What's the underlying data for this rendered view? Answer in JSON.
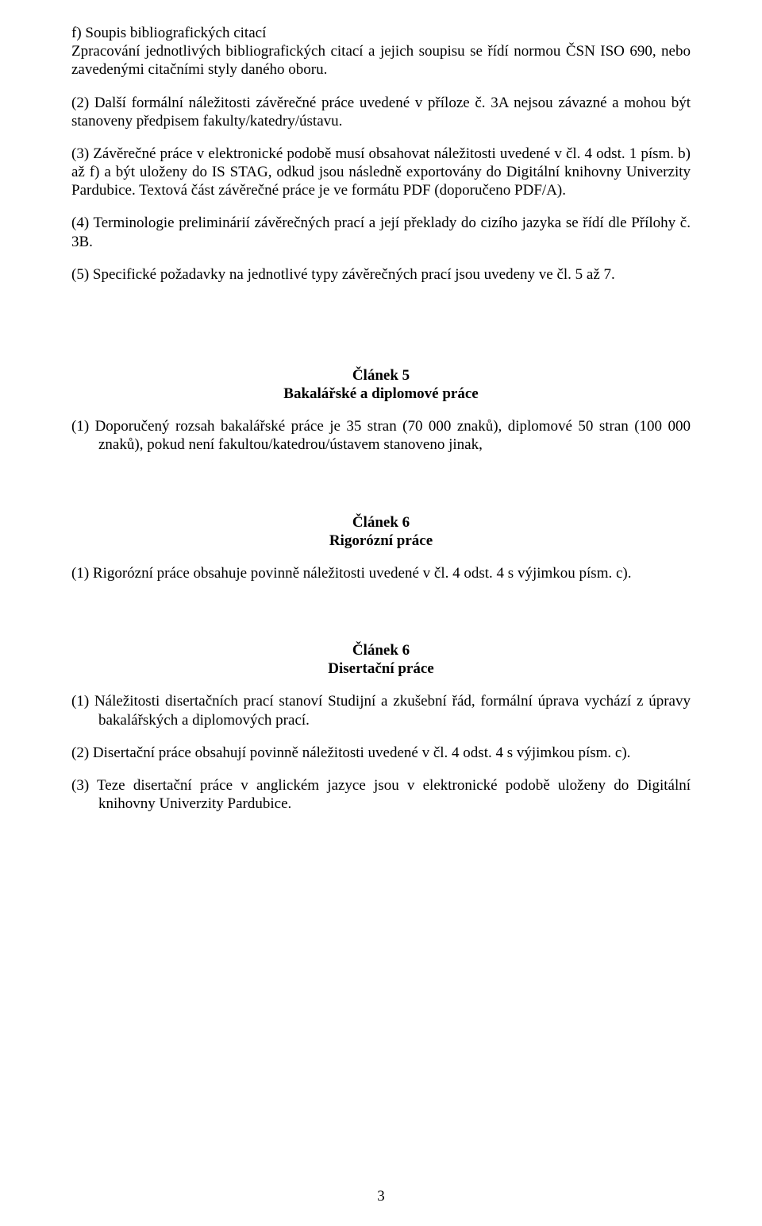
{
  "intro": {
    "f_title": "f) Soupis bibliografických citací",
    "f_text": "Zpracování jednotlivých bibliografických citací a jejich soupisu se řídí normou ČSN ISO 690, nebo zavedenými citačními styly daného oboru.",
    "p2": "(2) Další formální náležitosti závěrečné práce uvedené v příloze č. 3A nejsou závazné a mohou být stanoveny předpisem fakulty/katedry/ústavu.",
    "p3": "(3) Závěrečné práce v elektronické podobě musí obsahovat náležitosti uvedené v čl. 4 odst. 1 písm. b) až f) a být uloženy do IS STAG, odkud jsou následně exportovány do Digitální knihovny Univerzity Pardubice. Textová část závěrečné práce je ve formátu PDF (doporučeno PDF/A).",
    "p4": "(4) Terminologie preliminárií závěrečných prací a její překlady do cizího jazyka se řídí dle Přílohy č. 3B.",
    "p5": "(5) Specifické požadavky na jednotlivé typy závěrečných prací jsou uvedeny ve čl. 5 až 7."
  },
  "art5": {
    "title": "Článek 5",
    "subtitle": "Bakalářské a diplomové práce",
    "p1": "(1) Doporučený rozsah bakalářské práce je 35 stran (70 000 znaků), diplomové 50 stran (100 000 znaků), pokud není fakultou/katedrou/ústavem stanoveno jinak,"
  },
  "art6a": {
    "title": "Článek 6",
    "subtitle": "Rigorózní práce",
    "p1": "(1) Rigorózní práce obsahuje povinně náležitosti uvedené v čl. 4 odst. 4 s výjimkou písm. c)."
  },
  "art6b": {
    "title": "Článek 6",
    "subtitle": "Disertační práce",
    "p1": "(1) Náležitosti disertačních prací stanoví Studijní a zkušební řád, formální úprava vychází z úpravy bakalářských a diplomových prací.",
    "p2": "(2) Disertační práce obsahují povinně náležitosti uvedené v čl. 4 odst. 4 s výjimkou písm. c).",
    "p3": "(3) Teze disertační práce v anglickém jazyce jsou v elektronické podobě uloženy do Digitální knihovny Univerzity Pardubice."
  },
  "pageNumber": "3"
}
